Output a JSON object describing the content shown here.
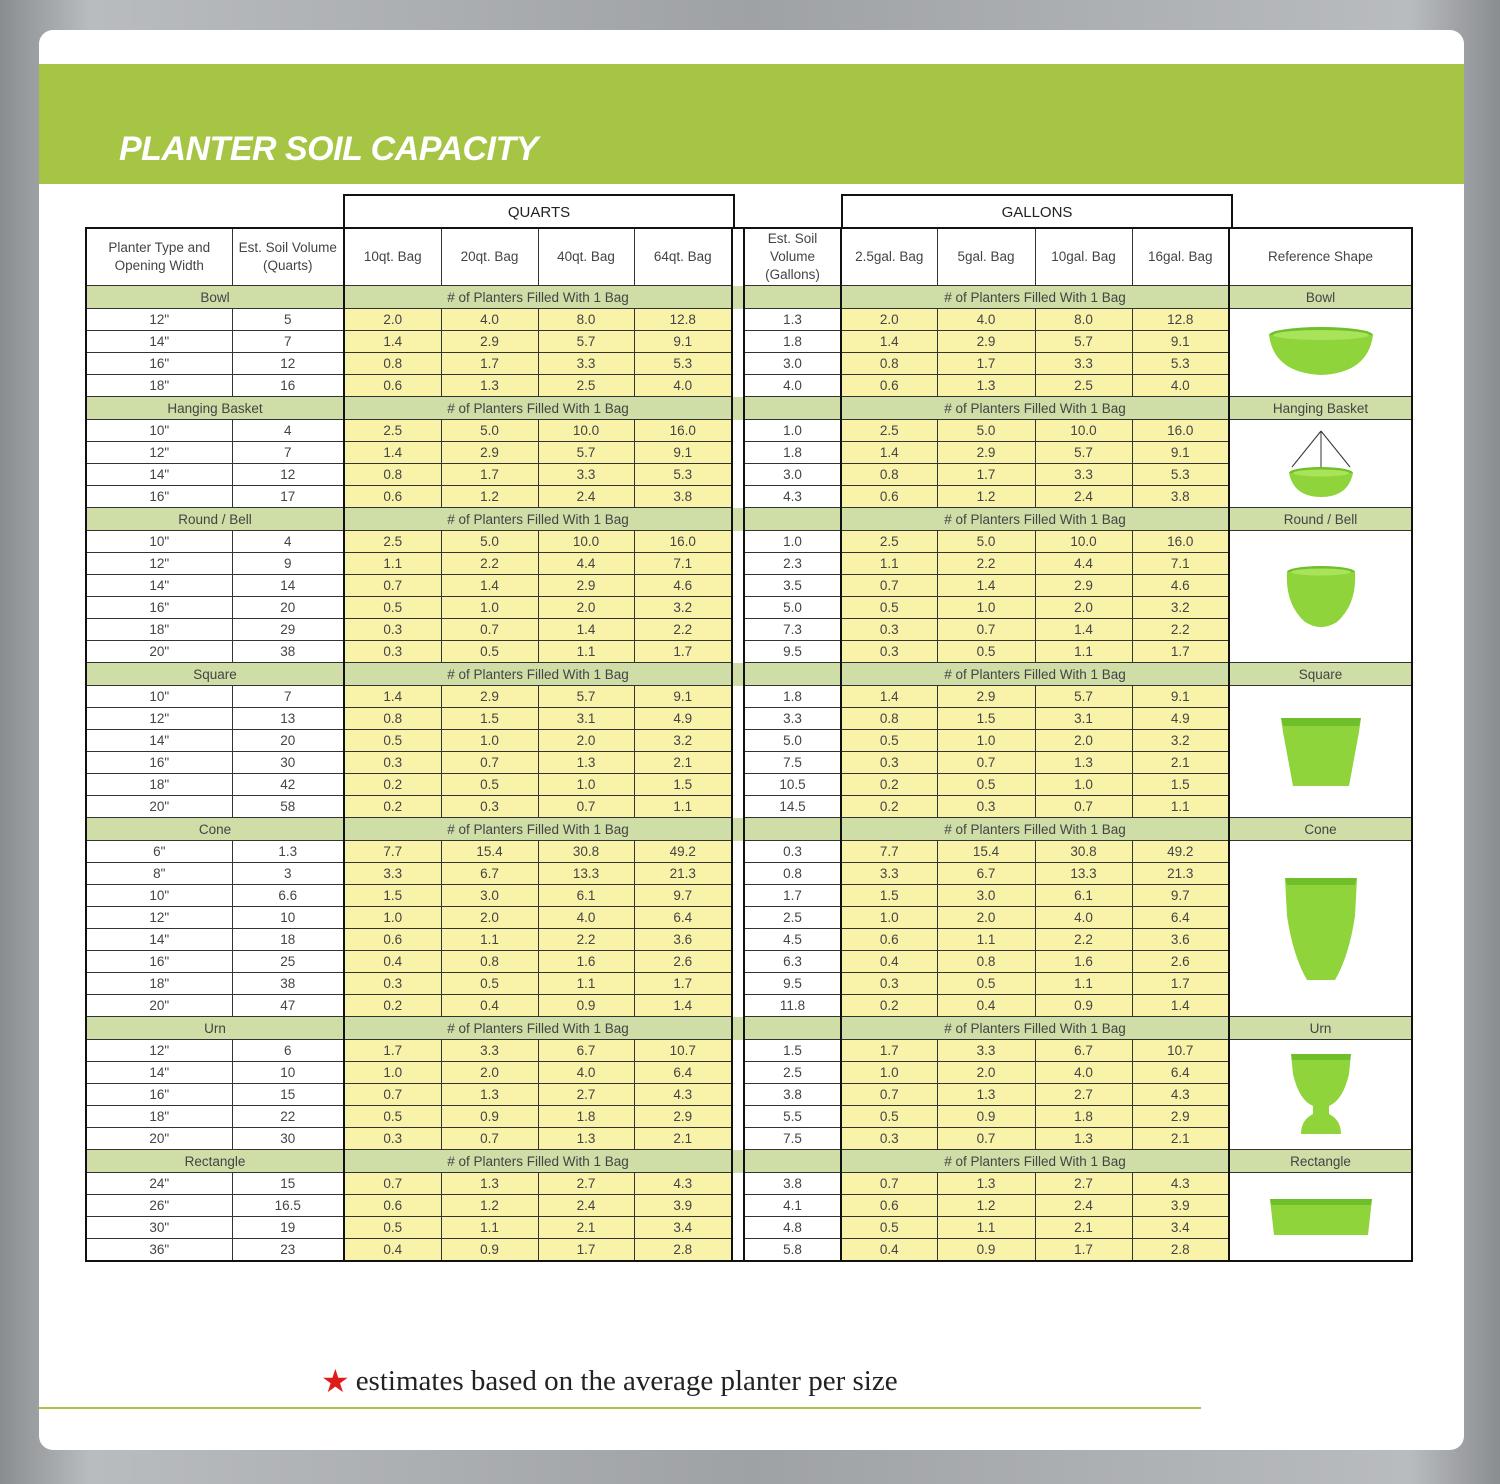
{
  "title": "PLANTER SOIL CAPACITY",
  "group_headers": {
    "quarts": "QUARTS",
    "gallons": "GALLONS"
  },
  "col_headers": {
    "type": "Planter Type and Opening Width",
    "vol_q": "Est. Soil Volume (Quarts)",
    "q10": "10qt. Bag",
    "q20": "20qt. Bag",
    "q40": "40qt. Bag",
    "q64": "64qt. Bag",
    "vol_g": "Est. Soil Volume (Gallons)",
    "g25": "2.5gal. Bag",
    "g5": "5gal. Bag",
    "g10": "10gal. Bag",
    "g16": "16gal. Bag",
    "ref": "Reference Shape"
  },
  "filled_label": "# of Planters Filled With 1 Bag",
  "sections": [
    {
      "name": "Bowl",
      "rows": [
        [
          "12\"",
          "5",
          "2.0",
          "4.0",
          "8.0",
          "12.8",
          "1.3",
          "2.0",
          "4.0",
          "8.0",
          "12.8"
        ],
        [
          "14\"",
          "7",
          "1.4",
          "2.9",
          "5.7",
          "9.1",
          "1.8",
          "1.4",
          "2.9",
          "5.7",
          "9.1"
        ],
        [
          "16\"",
          "12",
          "0.8",
          "1.7",
          "3.3",
          "5.3",
          "3.0",
          "0.8",
          "1.7",
          "3.3",
          "5.3"
        ],
        [
          "18\"",
          "16",
          "0.6",
          "1.3",
          "2.5",
          "4.0",
          "4.0",
          "0.6",
          "1.3",
          "2.5",
          "4.0"
        ]
      ]
    },
    {
      "name": "Hanging Basket",
      "rows": [
        [
          "10\"",
          "4",
          "2.5",
          "5.0",
          "10.0",
          "16.0",
          "1.0",
          "2.5",
          "5.0",
          "10.0",
          "16.0"
        ],
        [
          "12\"",
          "7",
          "1.4",
          "2.9",
          "5.7",
          "9.1",
          "1.8",
          "1.4",
          "2.9",
          "5.7",
          "9.1"
        ],
        [
          "14\"",
          "12",
          "0.8",
          "1.7",
          "3.3",
          "5.3",
          "3.0",
          "0.8",
          "1.7",
          "3.3",
          "5.3"
        ],
        [
          "16\"",
          "17",
          "0.6",
          "1.2",
          "2.4",
          "3.8",
          "4.3",
          "0.6",
          "1.2",
          "2.4",
          "3.8"
        ]
      ]
    },
    {
      "name": "Round / Bell",
      "rows": [
        [
          "10\"",
          "4",
          "2.5",
          "5.0",
          "10.0",
          "16.0",
          "1.0",
          "2.5",
          "5.0",
          "10.0",
          "16.0"
        ],
        [
          "12\"",
          "9",
          "1.1",
          "2.2",
          "4.4",
          "7.1",
          "2.3",
          "1.1",
          "2.2",
          "4.4",
          "7.1"
        ],
        [
          "14\"",
          "14",
          "0.7",
          "1.4",
          "2.9",
          "4.6",
          "3.5",
          "0.7",
          "1.4",
          "2.9",
          "4.6"
        ],
        [
          "16\"",
          "20",
          "0.5",
          "1.0",
          "2.0",
          "3.2",
          "5.0",
          "0.5",
          "1.0",
          "2.0",
          "3.2"
        ],
        [
          "18\"",
          "29",
          "0.3",
          "0.7",
          "1.4",
          "2.2",
          "7.3",
          "0.3",
          "0.7",
          "1.4",
          "2.2"
        ],
        [
          "20\"",
          "38",
          "0.3",
          "0.5",
          "1.1",
          "1.7",
          "9.5",
          "0.3",
          "0.5",
          "1.1",
          "1.7"
        ]
      ]
    },
    {
      "name": "Square",
      "rows": [
        [
          "10\"",
          "7",
          "1.4",
          "2.9",
          "5.7",
          "9.1",
          "1.8",
          "1.4",
          "2.9",
          "5.7",
          "9.1"
        ],
        [
          "12\"",
          "13",
          "0.8",
          "1.5",
          "3.1",
          "4.9",
          "3.3",
          "0.8",
          "1.5",
          "3.1",
          "4.9"
        ],
        [
          "14\"",
          "20",
          "0.5",
          "1.0",
          "2.0",
          "3.2",
          "5.0",
          "0.5",
          "1.0",
          "2.0",
          "3.2"
        ],
        [
          "16\"",
          "30",
          "0.3",
          "0.7",
          "1.3",
          "2.1",
          "7.5",
          "0.3",
          "0.7",
          "1.3",
          "2.1"
        ],
        [
          "18\"",
          "42",
          "0.2",
          "0.5",
          "1.0",
          "1.5",
          "10.5",
          "0.2",
          "0.5",
          "1.0",
          "1.5"
        ],
        [
          "20\"",
          "58",
          "0.2",
          "0.3",
          "0.7",
          "1.1",
          "14.5",
          "0.2",
          "0.3",
          "0.7",
          "1.1"
        ]
      ]
    },
    {
      "name": "Cone",
      "rows": [
        [
          "6\"",
          "1.3",
          "7.7",
          "15.4",
          "30.8",
          "49.2",
          "0.3",
          "7.7",
          "15.4",
          "30.8",
          "49.2"
        ],
        [
          "8\"",
          "3",
          "3.3",
          "6.7",
          "13.3",
          "21.3",
          "0.8",
          "3.3",
          "6.7",
          "13.3",
          "21.3"
        ],
        [
          "10\"",
          "6.6",
          "1.5",
          "3.0",
          "6.1",
          "9.7",
          "1.7",
          "1.5",
          "3.0",
          "6.1",
          "9.7"
        ],
        [
          "12\"",
          "10",
          "1.0",
          "2.0",
          "4.0",
          "6.4",
          "2.5",
          "1.0",
          "2.0",
          "4.0",
          "6.4"
        ],
        [
          "14\"",
          "18",
          "0.6",
          "1.1",
          "2.2",
          "3.6",
          "4.5",
          "0.6",
          "1.1",
          "2.2",
          "3.6"
        ],
        [
          "16\"",
          "25",
          "0.4",
          "0.8",
          "1.6",
          "2.6",
          "6.3",
          "0.4",
          "0.8",
          "1.6",
          "2.6"
        ],
        [
          "18\"",
          "38",
          "0.3",
          "0.5",
          "1.1",
          "1.7",
          "9.5",
          "0.3",
          "0.5",
          "1.1",
          "1.7"
        ],
        [
          "20\"",
          "47",
          "0.2",
          "0.4",
          "0.9",
          "1.4",
          "11.8",
          "0.2",
          "0.4",
          "0.9",
          "1.4"
        ]
      ]
    },
    {
      "name": "Urn",
      "rows": [
        [
          "12\"",
          "6",
          "1.7",
          "3.3",
          "6.7",
          "10.7",
          "1.5",
          "1.7",
          "3.3",
          "6.7",
          "10.7"
        ],
        [
          "14\"",
          "10",
          "1.0",
          "2.0",
          "4.0",
          "6.4",
          "2.5",
          "1.0",
          "2.0",
          "4.0",
          "6.4"
        ],
        [
          "16\"",
          "15",
          "0.7",
          "1.3",
          "2.7",
          "4.3",
          "3.8",
          "0.7",
          "1.3",
          "2.7",
          "4.3"
        ],
        [
          "18\"",
          "22",
          "0.5",
          "0.9",
          "1.8",
          "2.9",
          "5.5",
          "0.5",
          "0.9",
          "1.8",
          "2.9"
        ],
        [
          "20\"",
          "30",
          "0.3",
          "0.7",
          "1.3",
          "2.1",
          "7.5",
          "0.3",
          "0.7",
          "1.3",
          "2.1"
        ]
      ]
    },
    {
      "name": "Rectangle",
      "rows": [
        [
          "24\"",
          "15",
          "0.7",
          "1.3",
          "2.7",
          "4.3",
          "3.8",
          "0.7",
          "1.3",
          "2.7",
          "4.3"
        ],
        [
          "26\"",
          "16.5",
          "0.6",
          "1.2",
          "2.4",
          "3.9",
          "4.1",
          "0.6",
          "1.2",
          "2.4",
          "3.9"
        ],
        [
          "30\"",
          "19",
          "0.5",
          "1.1",
          "2.1",
          "3.4",
          "4.8",
          "0.5",
          "1.1",
          "2.1",
          "3.4"
        ],
        [
          "36\"",
          "23",
          "0.4",
          "0.9",
          "1.7",
          "2.8",
          "5.8",
          "0.4",
          "0.9",
          "1.7",
          "2.8"
        ]
      ]
    }
  ],
  "shape_color": "#8fd43a",
  "footnote": "estimates based on the average planter per size"
}
